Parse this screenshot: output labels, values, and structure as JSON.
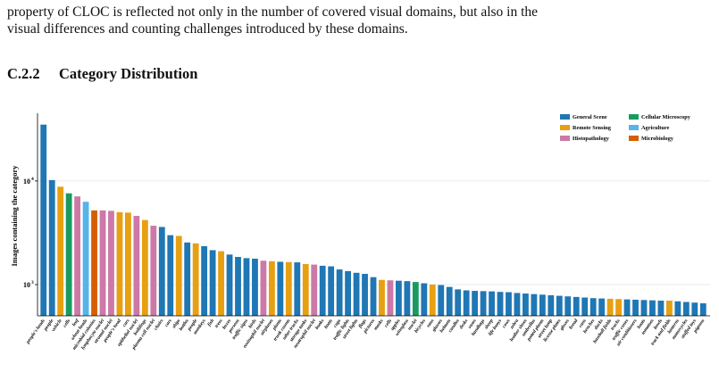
{
  "paragraph": {
    "line1": "property of CLOC is reflected not only in the number of covered visual domains, but also in the",
    "line2": "visual differences and counting challenges introduced by these domains."
  },
  "section": {
    "number": "C.2.2",
    "title": "Category Distribution"
  },
  "domains": [
    {
      "name": "General Scene",
      "color": "#1f77b4"
    },
    {
      "name": "Cellular Microscopy",
      "color": "#1a9a60"
    },
    {
      "name": "Remote Sensing",
      "color": "#e6a012"
    },
    {
      "name": "Agriculture",
      "color": "#56b4e9"
    },
    {
      "name": "Histopathology",
      "color": "#cc79a7"
    },
    {
      "name": "Microbiology",
      "color": "#d55e00"
    }
  ],
  "chart_data": {
    "type": "bar",
    "ylabel": "Images containing the category",
    "yscale": "log",
    "ylim": [
      500,
      45000
    ],
    "yticks": [
      {
        "value": 1000,
        "label": "10",
        "exp": "3"
      },
      {
        "value": 10000,
        "label": "10",
        "exp": "4"
      }
    ],
    "legend_position": "top-right",
    "grid": "horizontal",
    "bars": [
      {
        "label": "people's heads",
        "value": 35000,
        "domain": 0
      },
      {
        "label": "people",
        "value": 10200,
        "domain": 0
      },
      {
        "label": "vehicle",
        "value": 8800,
        "domain": 2
      },
      {
        "label": "cells",
        "value": 7600,
        "domain": 1
      },
      {
        "label": "leaf",
        "value": 7100,
        "domain": 4
      },
      {
        "label": "wheat heads",
        "value": 6300,
        "domain": 3
      },
      {
        "label": "microbial colonies",
        "value": 5200,
        "domain": 5
      },
      {
        "label": "lymphocyte nuclei",
        "value": 5200,
        "domain": 4
      },
      {
        "label": "stromal nuclei",
        "value": 5150,
        "domain": 4
      },
      {
        "label": "people's head",
        "value": 5000,
        "domain": 2
      },
      {
        "label": "cars",
        "value": 4950,
        "domain": 2
      },
      {
        "label": "epithelial nuclei",
        "value": 4600,
        "domain": 4
      },
      {
        "label": "buildings",
        "value": 4200,
        "domain": 2
      },
      {
        "label": "plasma cell nuclei",
        "value": 3700,
        "domain": 4
      },
      {
        "label": "chairs",
        "value": 3600,
        "domain": 0
      },
      {
        "label": "cars",
        "value": 3000,
        "domain": 0
      },
      {
        "label": "ships",
        "value": 2950,
        "domain": 2
      },
      {
        "label": "bottles",
        "value": 2550,
        "domain": 0
      },
      {
        "label": "people",
        "value": 2500,
        "domain": 2
      },
      {
        "label": "monkeys",
        "value": 2350,
        "domain": 0
      },
      {
        "label": "fish",
        "value": 2150,
        "domain": 0
      },
      {
        "label": "trees",
        "value": 2100,
        "domain": 2
      },
      {
        "label": "boxes",
        "value": 1950,
        "domain": 0
      },
      {
        "label": "persons",
        "value": 1850,
        "domain": 0
      },
      {
        "label": "traffic signs",
        "value": 1800,
        "domain": 0
      },
      {
        "label": "birds",
        "value": 1780,
        "domain": 0
      },
      {
        "label": "eosinophil nuclei",
        "value": 1700,
        "domain": 4
      },
      {
        "label": "airplanes",
        "value": 1680,
        "domain": 2
      },
      {
        "label": "plants",
        "value": 1660,
        "domain": 0
      },
      {
        "label": "trunk counts",
        "value": 1650,
        "domain": 2
      },
      {
        "label": "other trucks",
        "value": 1640,
        "domain": 0
      },
      {
        "label": "storage tanks",
        "value": 1580,
        "domain": 2
      },
      {
        "label": "neutrophil nuclei",
        "value": 1560,
        "domain": 4
      },
      {
        "label": "books",
        "value": 1520,
        "domain": 0
      },
      {
        "label": "boats",
        "value": 1500,
        "domain": 0
      },
      {
        "label": "cups",
        "value": 1400,
        "domain": 0
      },
      {
        "label": "traffic lights",
        "value": 1350,
        "domain": 0
      },
      {
        "label": "street lights",
        "value": 1300,
        "domain": 0
      },
      {
        "label": "flags",
        "value": 1270,
        "domain": 0
      },
      {
        "label": "pictures",
        "value": 1180,
        "domain": 0
      },
      {
        "label": "masks",
        "value": 1110,
        "domain": 2
      },
      {
        "label": "cells",
        "value": 1100,
        "domain": 4
      },
      {
        "label": "apples",
        "value": 1090,
        "domain": 0
      },
      {
        "label": "wineglass",
        "value": 1080,
        "domain": 0
      },
      {
        "label": "nuclei",
        "value": 1060,
        "domain": 1
      },
      {
        "label": "bicycles",
        "value": 1030,
        "domain": 0
      },
      {
        "label": "vans",
        "value": 1000,
        "domain": 2
      },
      {
        "label": "glasses",
        "value": 990,
        "domain": 0
      },
      {
        "label": "helmets",
        "value": 950,
        "domain": 0
      },
      {
        "label": "candles",
        "value": 900,
        "domain": 0
      },
      {
        "label": "desks",
        "value": 880,
        "domain": 0
      },
      {
        "label": "vases",
        "value": 870,
        "domain": 0
      },
      {
        "label": "handbags",
        "value": 865,
        "domain": 0
      },
      {
        "label": "sheep",
        "value": 860,
        "domain": 0
      },
      {
        "label": "life buoys",
        "value": 850,
        "domain": 0
      },
      {
        "label": "cows",
        "value": 845,
        "domain": 0
      },
      {
        "label": "zebra",
        "value": 830,
        "domain": 0
      },
      {
        "label": "leather shoes",
        "value": 820,
        "domain": 0
      },
      {
        "label": "umbrellas",
        "value": 810,
        "domain": 0
      },
      {
        "label": "potted plants",
        "value": 800,
        "domain": 0
      },
      {
        "label": "street lamp",
        "value": 790,
        "domain": 0
      },
      {
        "label": "license plates",
        "value": 780,
        "domain": 0
      },
      {
        "label": "gloves",
        "value": 770,
        "domain": 0
      },
      {
        "label": "bread",
        "value": 760,
        "domain": 0
      },
      {
        "label": "cans",
        "value": 750,
        "domain": 0
      },
      {
        "label": "benches",
        "value": 740,
        "domain": 0
      },
      {
        "label": "ducks",
        "value": 735,
        "domain": 0
      },
      {
        "label": "baseball fields",
        "value": 730,
        "domain": 2
      },
      {
        "label": "trucks",
        "value": 725,
        "domain": 2
      },
      {
        "label": "traffic cones",
        "value": 720,
        "domain": 0
      },
      {
        "label": "air conditioners",
        "value": 715,
        "domain": 0
      },
      {
        "label": "boats",
        "value": 710,
        "domain": 0
      },
      {
        "label": "tomatoes",
        "value": 705,
        "domain": 0
      },
      {
        "label": "bowls",
        "value": 700,
        "domain": 0
      },
      {
        "label": "track and fields",
        "value": 700,
        "domain": 2
      },
      {
        "label": "lanterns",
        "value": 690,
        "domain": 0
      },
      {
        "label": "motorcycles",
        "value": 680,
        "domain": 0
      },
      {
        "label": "stuffed toys",
        "value": 670,
        "domain": 0
      },
      {
        "label": "pigeons",
        "value": 660,
        "domain": 0
      }
    ]
  }
}
